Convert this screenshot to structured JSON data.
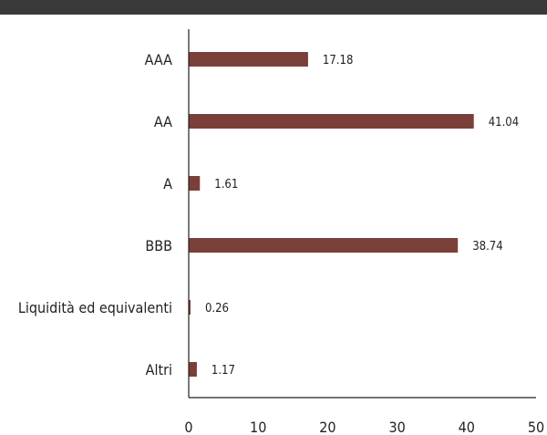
{
  "chart_data": {
    "type": "bar",
    "orientation": "horizontal",
    "title": "",
    "xlabel": "",
    "ylabel": "",
    "categories": [
      "AAA",
      "AA",
      "A",
      "BBB",
      "Liquidità ed equivalenti",
      "Altri"
    ],
    "values": [
      17.18,
      41.04,
      1.61,
      38.74,
      0.26,
      1.17
    ],
    "value_labels": [
      "17.18",
      "41.04",
      "1.61",
      "38.74",
      "0.26",
      "1.17"
    ],
    "xlim": [
      0,
      50
    ],
    "xticks": [
      0,
      10,
      20,
      30,
      40,
      50
    ],
    "xtick_labels": [
      "0",
      "10",
      "20",
      "30",
      "40",
      "50"
    ],
    "grid": false,
    "bar_color": "#7b3f3a",
    "top_rule_color": "#3a3a3a"
  }
}
